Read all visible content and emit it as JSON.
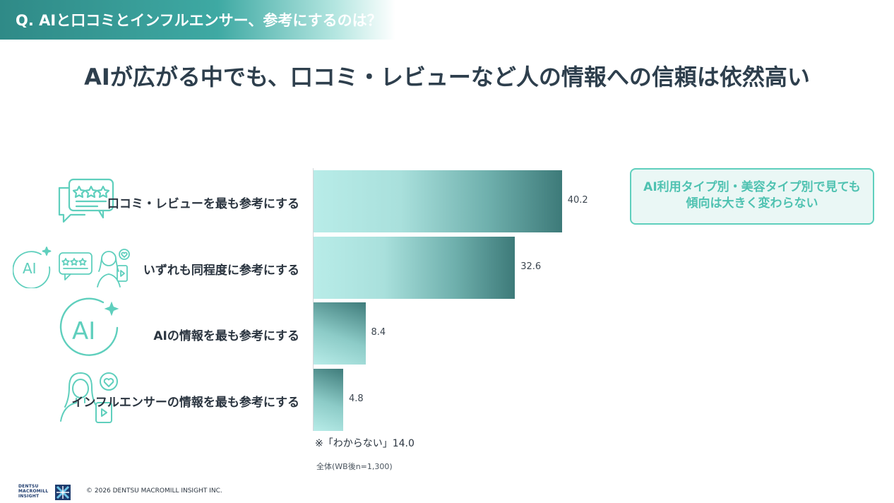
{
  "header": {
    "question": "Q. AIと口コミとインフルエンサー、参考にするのは？",
    "headline": "AIが広がる中でも、口コミ・レビューなど人の情報への信頼は依然高い"
  },
  "chart_data": {
    "type": "bar",
    "orientation": "horizontal",
    "categories": [
      "口コミ・レビューを最も参考にする",
      "いずれも同程度に参考にする",
      "AIの情報を最も参考にする",
      "インフルエンサーの情報を最も参考にする"
    ],
    "values": [
      40.2,
      32.6,
      8.4,
      4.8
    ],
    "value_labels": [
      "40.2",
      "32.6",
      "8.4",
      "4.8"
    ],
    "xlim": [
      0,
      100
    ],
    "grid": false,
    "legend": "none",
    "note": "※「わからない」14.0",
    "base": "全体(WB後n=1,300)"
  },
  "callout": {
    "line1": "AI利用タイプ別・美容タイプ別で見ても",
    "line2": "傾向は大きく変わらない"
  },
  "icons": [
    "review-bubble-icon",
    "ai-review-influencer-icon",
    "ai-icon",
    "influencer-icon"
  ],
  "icon_text": {
    "ai": "AI"
  },
  "footer": {
    "logo_line1": "DENTSU",
    "logo_line2": "MACROMILL",
    "logo_line3": "INSIGHT",
    "copyright": "© 2026  DENTSU MACROMILL INSIGHT INC."
  },
  "colors": {
    "accent": "#3ea9a3",
    "bar_light": "#b8ece8",
    "bar_dark": "#3d7a79",
    "callout_border": "#5fcfbd",
    "icon": "#5fcfbd"
  }
}
